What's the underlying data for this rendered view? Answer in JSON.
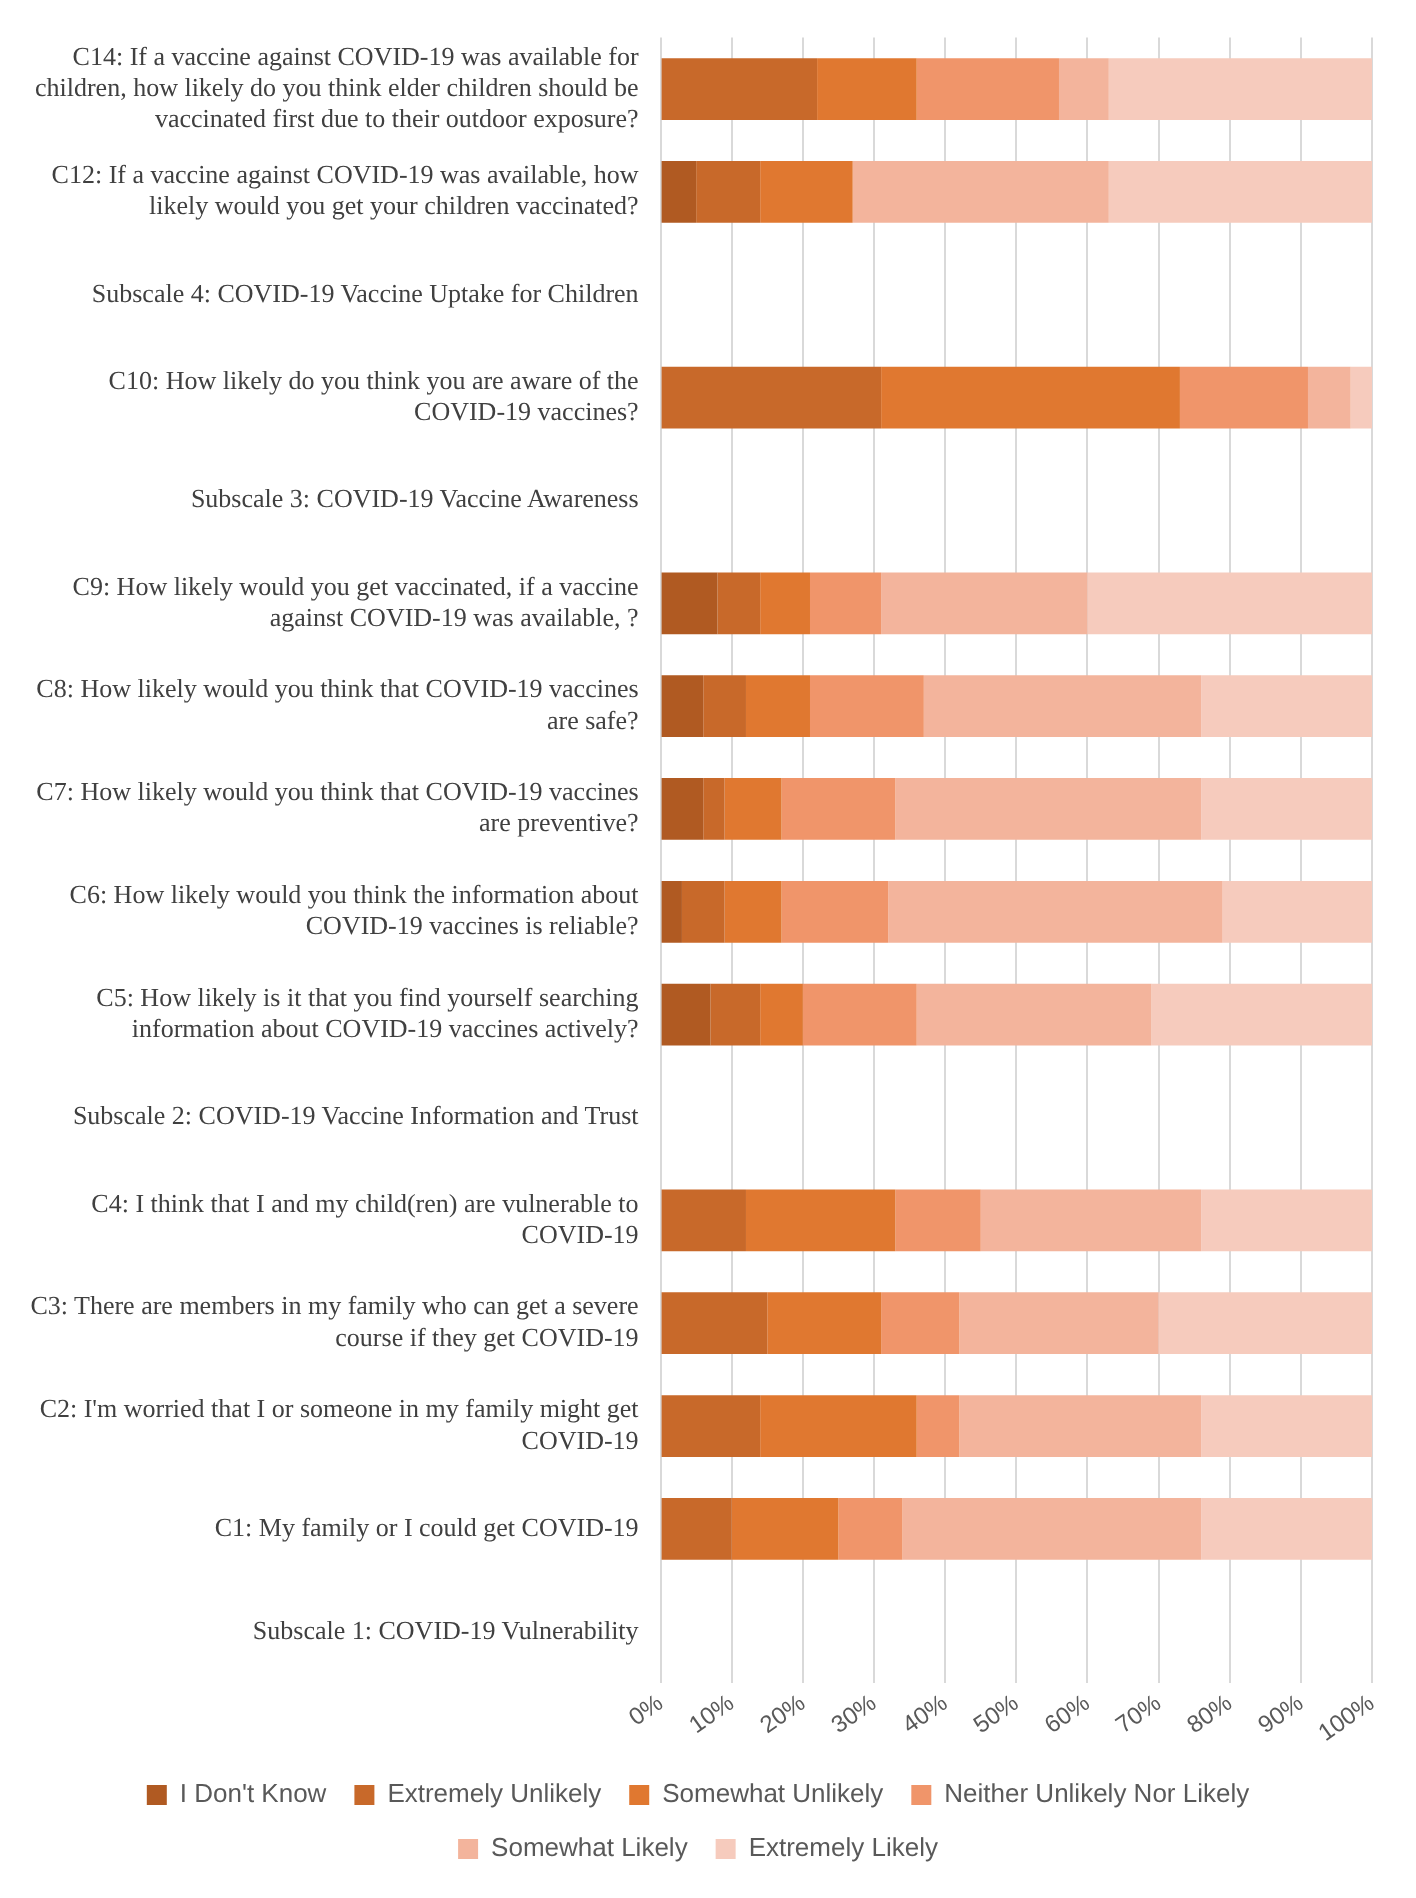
{
  "chart_data": {
    "type": "bar",
    "orientation": "horizontal",
    "stacked": true,
    "categories": [
      "C14: If a vaccine against COVID-19 was available for children, how likely do you think elder children should be vaccinated first due to their outdoor exposure?",
      "C12: If a vaccine against COVID-19 was available, how likely would you get your children vaccinated?",
      "Subscale 4: COVID-19 Vaccine Uptake for Children",
      "C10: How likely do you think you are aware of the COVID-19 vaccines?",
      "Subscale 3: COVID-19 Vaccine Awareness",
      "C9: How likely would you get vaccinated, if a vaccine against COVID-19 was available, ?",
      "C8: How likely would you think that COVID-19 vaccines are safe?",
      "C7: How likely would you think that COVID-19 vaccines are preventive?",
      "C6: How likely would you think the information about COVID-19 vaccines is reliable?",
      "C5: How likely is it that you find yourself searching information about COVID-19 vaccines actively?",
      "Subscale 2: COVID-19 Vaccine Information and Trust",
      "C4: I think that I and my child(ren) are vulnerable to COVID-19",
      "C3: There are members in my family who can get a severe course if they get COVID-19",
      "C2: I'm worried that I or someone in my family might get COVID-19",
      "C1: My family or I could get COVID-19",
      "Subscale 1: COVID-19 Vulnerability"
    ],
    "series": [
      {
        "name": "I Don't Know",
        "color": "#b05a22",
        "values": [
          0,
          5,
          null,
          0,
          null,
          8,
          6,
          6,
          3,
          7,
          null,
          0,
          0,
          0,
          0,
          null
        ]
      },
      {
        "name": "Extremely Unlikely",
        "color": "#c8692a",
        "values": [
          22,
          9,
          null,
          31,
          null,
          6,
          6,
          3,
          6,
          7,
          null,
          12,
          15,
          14,
          10,
          null
        ]
      },
      {
        "name": "Somewhat Unlikely",
        "color": "#e07830",
        "values": [
          14,
          13,
          null,
          42,
          null,
          7,
          9,
          8,
          8,
          6,
          null,
          21,
          16,
          22,
          15,
          null
        ]
      },
      {
        "name": "Neither Unlikely Nor Likely",
        "color": "#f0956a",
        "values": [
          20,
          0,
          null,
          18,
          null,
          10,
          16,
          16,
          15,
          16,
          null,
          12,
          11,
          6,
          9,
          null
        ]
      },
      {
        "name": "Somewhat Likely",
        "color": "#f3b49c",
        "values": [
          7,
          36,
          null,
          6,
          null,
          29,
          39,
          43,
          47,
          33,
          null,
          31,
          28,
          34,
          42,
          null
        ]
      },
      {
        "name": "Extremely Likely",
        "color": "#f6cbbd",
        "values": [
          37,
          37,
          null,
          3,
          null,
          40,
          24,
          24,
          21,
          31,
          null,
          24,
          30,
          24,
          24,
          null
        ]
      }
    ],
    "xlim": [
      0,
      100
    ],
    "xticks": [
      {
        "value": 0,
        "label": "0%"
      },
      {
        "value": 10,
        "label": "10%"
      },
      {
        "value": 20,
        "label": "20%"
      },
      {
        "value": 30,
        "label": "30%"
      },
      {
        "value": 40,
        "label": "40%"
      },
      {
        "value": 50,
        "label": "50%"
      },
      {
        "value": 60,
        "label": "60%"
      },
      {
        "value": 70,
        "label": "70%"
      },
      {
        "value": 80,
        "label": "80%"
      },
      {
        "value": 90,
        "label": "90%"
      },
      {
        "value": 100,
        "label": "100%"
      }
    ],
    "grid": "x",
    "legend": "bottom"
  }
}
